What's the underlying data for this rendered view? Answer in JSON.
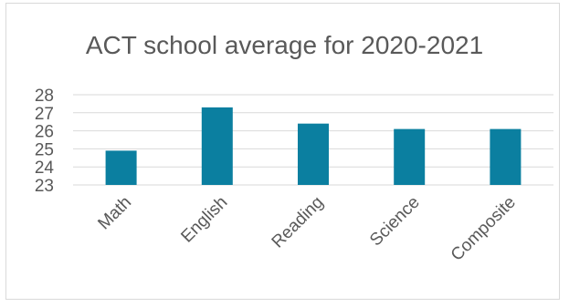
{
  "chart_data": {
    "type": "bar",
    "title": "ACT school average for 2020-2021",
    "categories": [
      "Math",
      "English",
      "Reading",
      "Science",
      "Composite"
    ],
    "values": [
      24.9,
      27.3,
      26.4,
      26.1,
      26.1
    ],
    "ylim": [
      23,
      28
    ],
    "yticks": [
      23,
      24,
      25,
      26,
      27,
      28
    ],
    "grid": true,
    "colors": {
      "bar": "#0b7fa0",
      "grid": "#d9d9d9",
      "text": "#595959"
    }
  }
}
